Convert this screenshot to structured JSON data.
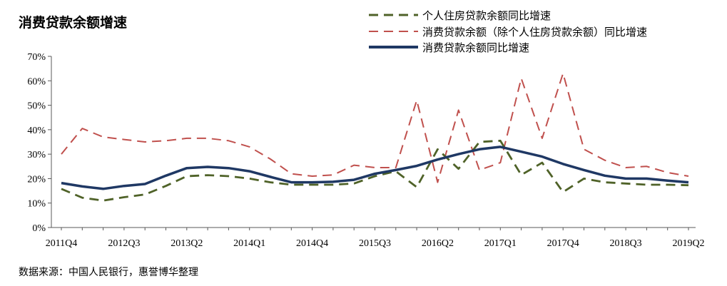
{
  "chart_data": {
    "type": "line",
    "title": "消费贷款余额增速",
    "source": "数据来源：中国人民银行，惠誉博华整理",
    "ylim": [
      0,
      70
    ],
    "yticks": [
      "0%",
      "10%",
      "20%",
      "30%",
      "40%",
      "50%",
      "60%",
      "70%"
    ],
    "x": [
      "2011Q4",
      "2012Q1",
      "2012Q2",
      "2012Q3",
      "2012Q4",
      "2013Q1",
      "2013Q2",
      "2013Q3",
      "2013Q4",
      "2014Q1",
      "2014Q2",
      "2014Q3",
      "2014Q4",
      "2015Q1",
      "2015Q2",
      "2015Q3",
      "2015Q4",
      "2016Q1",
      "2016Q2",
      "2016Q3",
      "2016Q4",
      "2017Q1",
      "2017Q2",
      "2017Q3",
      "2017Q4",
      "2018Q1",
      "2018Q2",
      "2018Q3",
      "2018Q4",
      "2019Q1",
      "2019Q2"
    ],
    "xtick_labels": [
      "2011Q4",
      "2012Q3",
      "2013Q2",
      "2014Q1",
      "2014Q4",
      "2015Q3",
      "2016Q2",
      "2017Q1",
      "2017Q4",
      "2018Q3",
      "2019Q2"
    ],
    "series": [
      {
        "name": "个人住房贷款余额同比增速",
        "style": "dashed",
        "color": "#4F6228",
        "values": [
          15.8,
          12.2,
          11.0,
          12.4,
          13.5,
          17.0,
          21.0,
          21.4,
          21.0,
          20.0,
          18.5,
          17.5,
          17.5,
          17.5,
          18.0,
          21.0,
          23.0,
          16.5,
          32.0,
          24.0,
          35.0,
          35.5,
          21.5,
          26.5,
          14.5,
          20.0,
          18.5,
          18.0,
          17.5,
          17.5,
          17.3
        ]
      },
      {
        "name": "消费贷款余额（除个人住房贷款余额）同比增速",
        "style": "dashed",
        "color": "#C0504D",
        "values": [
          30.0,
          40.5,
          37.0,
          36.0,
          35.0,
          35.5,
          36.5,
          36.5,
          35.5,
          33.0,
          28.0,
          22.0,
          21.0,
          21.5,
          25.5,
          24.5,
          24.5,
          52.0,
          18.5,
          48.0,
          23.5,
          26.5,
          61.0,
          36.5,
          63.0,
          32.0,
          27.5,
          24.5,
          25.0,
          22.5,
          21.0
        ]
      },
      {
        "name": "消费贷款余额同比增速",
        "style": "solid",
        "color": "#1F3864",
        "values": [
          18.2,
          16.8,
          15.8,
          17.0,
          17.8,
          21.2,
          24.3,
          24.8,
          24.3,
          23.0,
          20.7,
          18.5,
          18.5,
          18.7,
          19.5,
          22.0,
          23.5,
          25.2,
          27.8,
          30.0,
          32.0,
          33.0,
          31.0,
          29.0,
          26.0,
          23.5,
          21.2,
          20.0,
          20.0,
          19.2,
          18.5
        ]
      }
    ]
  }
}
